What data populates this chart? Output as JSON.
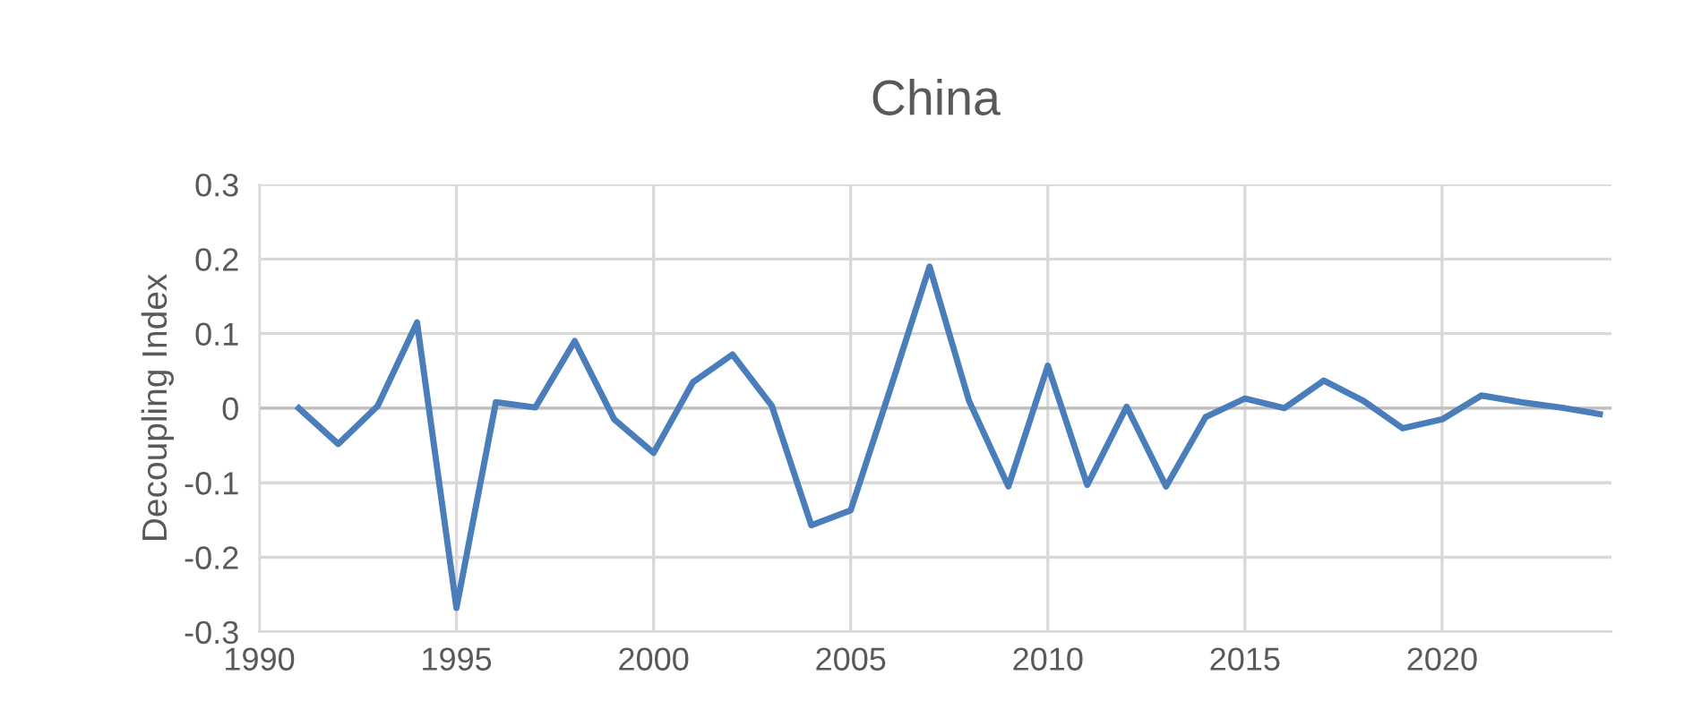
{
  "chart_data": {
    "type": "line",
    "title": "China",
    "ylabel": "Decoupling Index",
    "x": [
      1991,
      1992,
      1993,
      1994,
      1995,
      1996,
      1997,
      1998,
      1999,
      2000,
      2001,
      2002,
      2003,
      2004,
      2005,
      2006,
      2007,
      2008,
      2009,
      2010,
      2011,
      2012,
      2013,
      2014,
      2015,
      2016,
      2017,
      2018,
      2019,
      2020,
      2021,
      2022,
      2023,
      2024
    ],
    "series": [
      {
        "color": "#4a7ebb",
        "values": [
          0.0,
          -0.048,
          0.003,
          0.115,
          -0.268,
          0.008,
          0.001,
          0.09,
          -0.015,
          -0.06,
          0.035,
          0.072,
          0.003,
          -0.157,
          -0.137,
          0.025,
          0.19,
          0.01,
          -0.105,
          0.057,
          -0.103,
          0.002,
          -0.105,
          -0.012,
          0.013,
          0.0,
          0.037,
          0.01,
          -0.027,
          -0.015,
          0.017,
          0.008,
          0.001,
          -0.008
        ]
      }
    ],
    "xlim": [
      1990,
      2024.3
    ],
    "xticks": [
      1990,
      1995,
      2000,
      2005,
      2010,
      2015,
      2020
    ],
    "ylim": [
      -0.3,
      0.3
    ],
    "yticks": [
      {
        "value": -0.3,
        "label": "-0.3"
      },
      {
        "value": -0.2,
        "label": "-0.2"
      },
      {
        "value": -0.1,
        "label": "-0.1"
      },
      0,
      0.1,
      0.2,
      0.3
    ],
    "grid": true,
    "marker": "none",
    "line_style": "solid"
  }
}
